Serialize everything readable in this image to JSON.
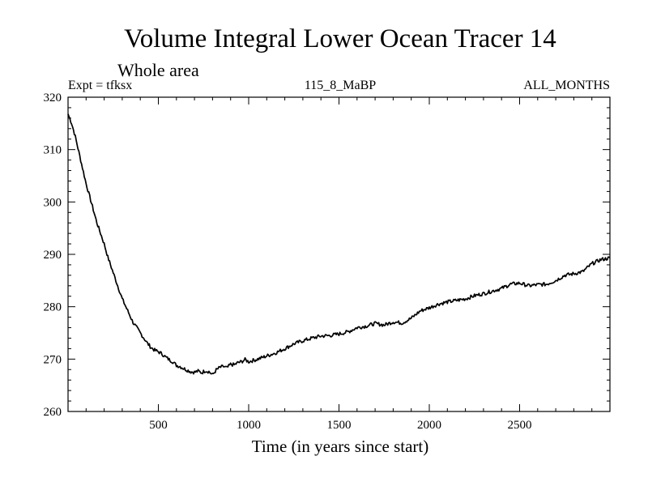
{
  "chart_data": {
    "type": "line",
    "title": "Volume Integral Lower Ocean Tracer 14",
    "subtitle": "Whole area",
    "experiment_label": "Expt = tfksx",
    "period_label": "115_8_MaBP",
    "months_label": "ALL_MONTHS",
    "xlabel": "Time (in years since start)",
    "ylabel": "",
    "xlim": [
      0,
      3000
    ],
    "ylim": [
      260,
      320
    ],
    "x_ticks": [
      500,
      1000,
      1500,
      2000,
      2500
    ],
    "y_ticks": [
      260,
      270,
      280,
      290,
      300,
      310,
      320
    ],
    "x_minor_step": 100,
    "y_minor_step": 2,
    "series": [
      {
        "name": "Tracer 14",
        "color": "#000000",
        "x": [
          0,
          20,
          40,
          60,
          80,
          100,
          120,
          140,
          160,
          180,
          200,
          220,
          240,
          260,
          280,
          300,
          320,
          340,
          360,
          380,
          400,
          420,
          440,
          460,
          480,
          500,
          520,
          540,
          560,
          580,
          600,
          620,
          640,
          660,
          680,
          700,
          720,
          740,
          760,
          780,
          800,
          820,
          840,
          860,
          880,
          900,
          920,
          940,
          960,
          980,
          1000,
          1050,
          1100,
          1150,
          1200,
          1250,
          1300,
          1350,
          1400,
          1450,
          1500,
          1550,
          1600,
          1650,
          1700,
          1750,
          1800,
          1850,
          1900,
          1950,
          2000,
          2050,
          2100,
          2150,
          2200,
          2250,
          2300,
          2350,
          2400,
          2450,
          2500,
          2550,
          2600,
          2650,
          2700,
          2750,
          2800,
          2850,
          2900,
          2950,
          3000
        ],
        "y": [
          316.8,
          315.0,
          312.5,
          309.5,
          306.5,
          303.5,
          301.0,
          298.5,
          296.0,
          294.0,
          292.0,
          289.5,
          287.5,
          285.5,
          283.5,
          281.5,
          280.0,
          278.5,
          277.0,
          276.0,
          275.0,
          274.0,
          273.0,
          272.2,
          271.7,
          271.4,
          271.0,
          270.4,
          269.9,
          269.5,
          268.8,
          268.6,
          268.2,
          267.9,
          267.6,
          267.5,
          267.7,
          267.4,
          267.8,
          267.6,
          267.0,
          267.9,
          268.4,
          268.6,
          268.3,
          269.0,
          268.9,
          269.3,
          269.5,
          269.9,
          269.5,
          270.0,
          270.6,
          271.2,
          272.0,
          272.9,
          273.5,
          274.0,
          274.4,
          274.5,
          274.8,
          275.2,
          276.0,
          276.3,
          276.8,
          276.5,
          277.1,
          276.9,
          277.8,
          279.2,
          279.8,
          280.5,
          280.9,
          281.2,
          281.5,
          282.1,
          282.5,
          283.0,
          283.5,
          284.3,
          284.5,
          284.0,
          284.2,
          284.3,
          285.0,
          286.0,
          286.3,
          286.7,
          288.2,
          289.0,
          289.3
        ]
      }
    ]
  }
}
